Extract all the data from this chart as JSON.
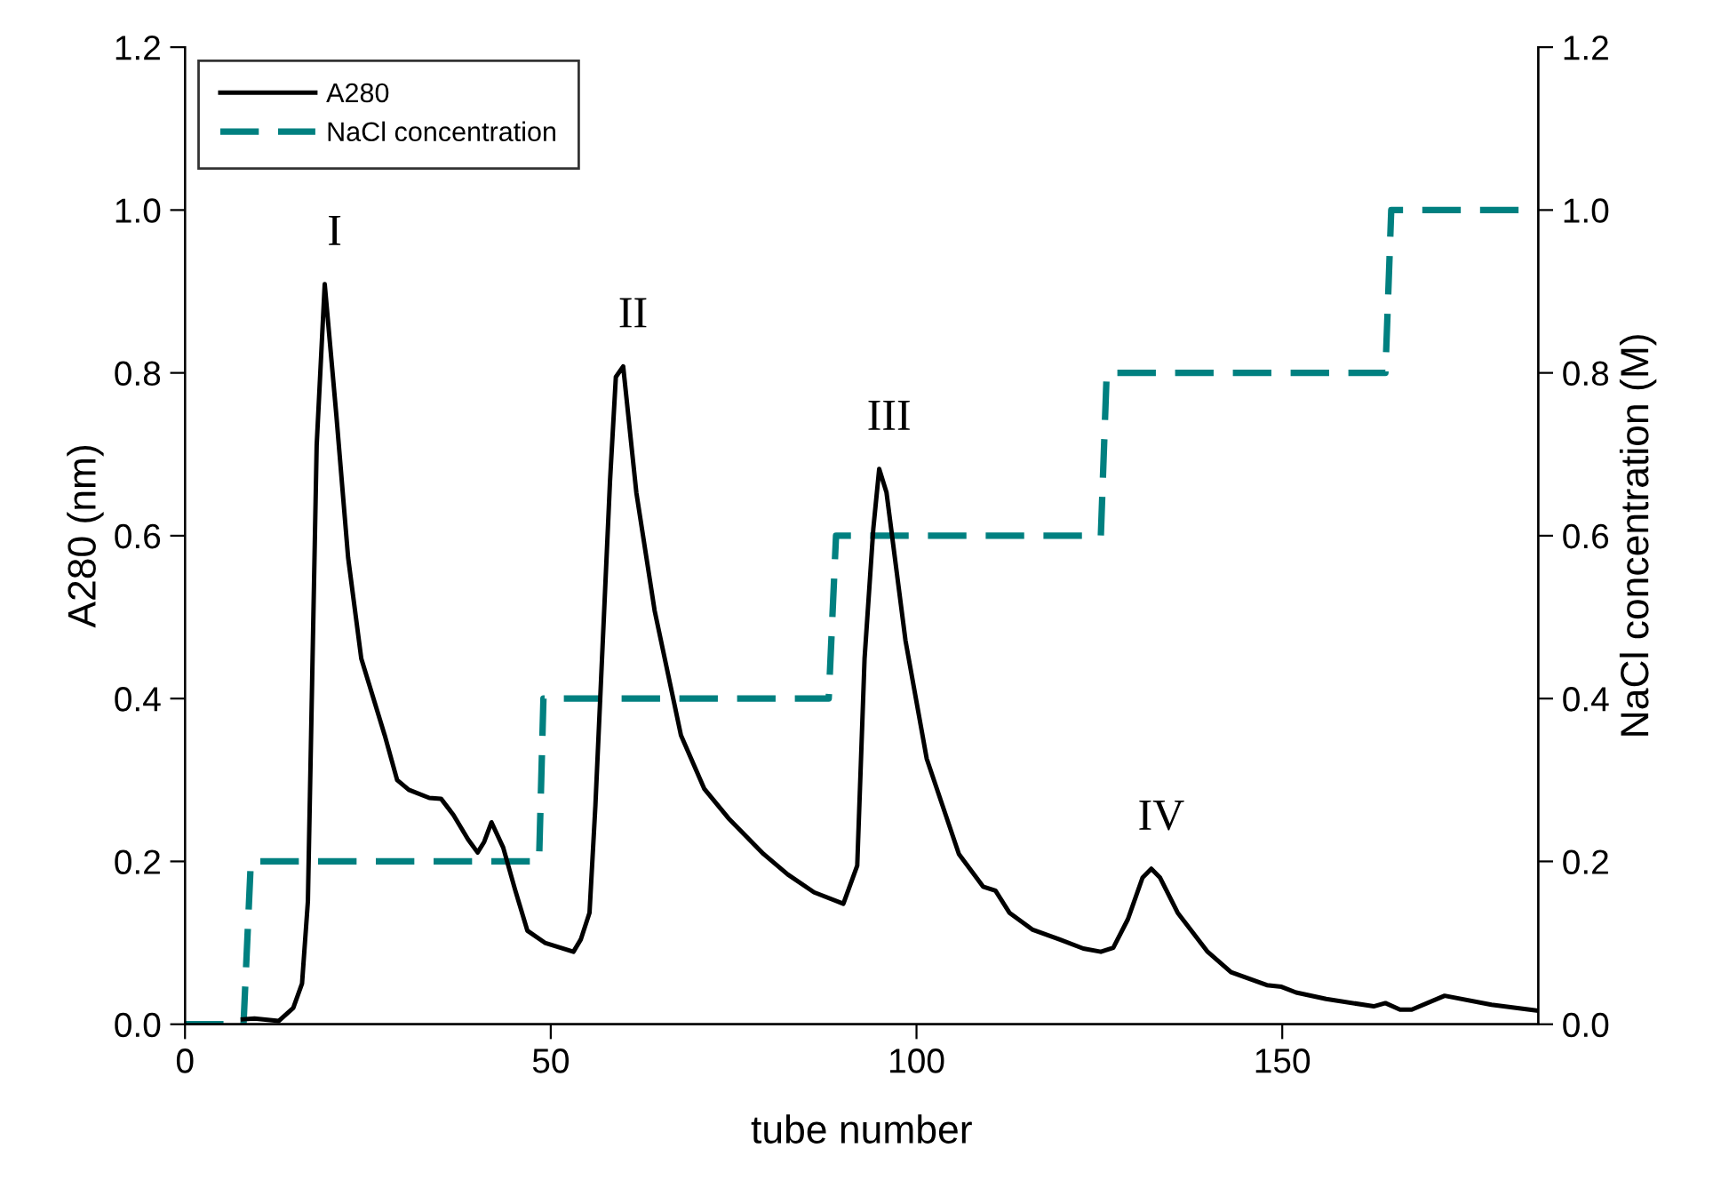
{
  "chart_data": {
    "type": "line",
    "xlabel": "tube number",
    "ylabel": "A280 (nm)",
    "y2label": "NaCl concentration (M)",
    "xlim": [
      0,
      185
    ],
    "xticks": [
      0,
      50,
      100,
      150
    ],
    "ylim": [
      0,
      1.2
    ],
    "yticks": [
      {
        "value": 0,
        "label": "0.0"
      },
      0.2,
      0.4,
      0.6,
      0.8,
      {
        "value": 1,
        "label": "1.0"
      },
      1.2
    ],
    "y2lim": [
      0,
      1.2
    ],
    "y2ticks": [
      {
        "value": 0,
        "label": "0.0"
      },
      0.2,
      0.4,
      0.6,
      0.8,
      {
        "value": 1,
        "label": "1.0"
      },
      1.2
    ],
    "grid": false,
    "legend": "top left",
    "marker": "none",
    "series": [
      {
        "name": "A280",
        "color": "#000000",
        "line_style": "solid",
        "x": [
          7.9,
          9.5,
          12.8,
          14.8,
          16.0,
          16.8,
          18.0,
          19.1,
          20.7,
          22.3,
          24.1,
          27.3,
          29.0,
          30.6,
          33.4,
          35.0,
          36.7,
          38.7,
          40.0,
          40.9,
          41.9,
          43.5,
          45.1,
          46.8,
          49.2,
          53.1,
          54.1,
          55.3,
          56.1,
          58.1,
          58.9,
          59.9,
          61.7,
          64.2,
          67.8,
          71.0,
          74.3,
          79.1,
          82.4,
          86.0,
          90.0,
          91.9,
          92.9,
          94.1,
          94.9,
          95.9,
          98.5,
          101.4,
          105.8,
          109.1,
          110.8,
          112.7,
          115.9,
          119.6,
          122.8,
          125.2,
          126.9,
          128.9,
          130.9,
          132.1,
          133.3,
          135.7,
          139.8,
          143.0,
          147.9,
          149.9,
          151.9,
          156.0,
          162.5,
          164.1,
          166.1,
          167.7,
          172.2,
          178.6,
          184.7
        ],
        "values": [
          0.006,
          0.007,
          0.004,
          0.02,
          0.05,
          0.151,
          0.711,
          0.909,
          0.747,
          0.573,
          0.449,
          0.355,
          0.3,
          0.288,
          0.278,
          0.277,
          0.257,
          0.227,
          0.211,
          0.224,
          0.248,
          0.217,
          0.166,
          0.115,
          0.1,
          0.089,
          0.104,
          0.137,
          0.268,
          0.667,
          0.795,
          0.808,
          0.653,
          0.508,
          0.355,
          0.289,
          0.253,
          0.209,
          0.184,
          0.162,
          0.148,
          0.195,
          0.449,
          0.609,
          0.682,
          0.653,
          0.471,
          0.326,
          0.209,
          0.169,
          0.164,
          0.137,
          0.116,
          0.104,
          0.093,
          0.089,
          0.094,
          0.129,
          0.18,
          0.191,
          0.18,
          0.137,
          0.089,
          0.064,
          0.048,
          0.046,
          0.039,
          0.031,
          0.022,
          0.026,
          0.018,
          0.018,
          0.035,
          0.024,
          0.017
        ]
      },
      {
        "name": "NaCl concentration",
        "color": "#008080",
        "line_style": "dashed",
        "axis": "y2",
        "x": [
          0,
          8,
          9,
          48.4,
          49,
          88,
          89,
          125.2,
          126,
          164.1,
          164.9,
          185
        ],
        "values": [
          0,
          0,
          0.2,
          0.2,
          0.4,
          0.4,
          0.6,
          0.6,
          0.8,
          0.8,
          1.0,
          1.0
        ]
      }
    ],
    "annotations": [
      {
        "text": "I",
        "x": 19.1,
        "y": 0.909
      },
      {
        "text": "II",
        "x": 59.9,
        "y": 0.808
      },
      {
        "text": "III",
        "x": 94.9,
        "y": 0.682
      },
      {
        "text": "IV",
        "x": 132.1,
        "y": 0.191
      }
    ]
  }
}
